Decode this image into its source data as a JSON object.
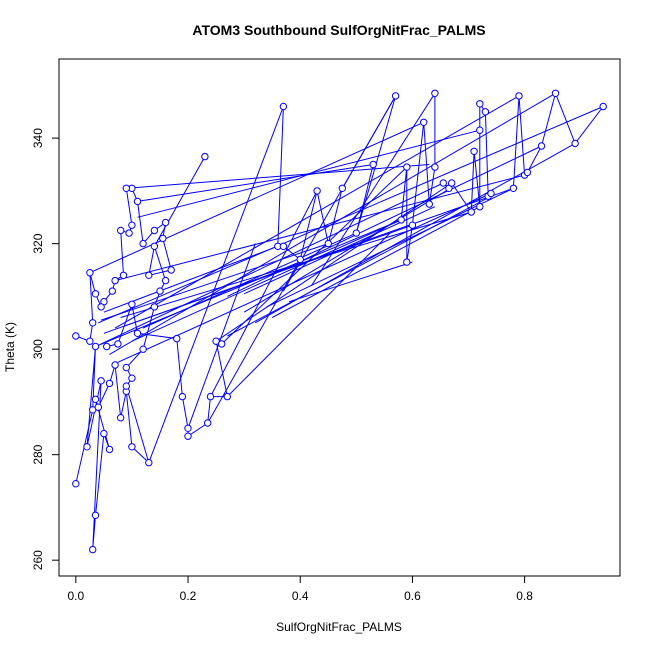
{
  "chart_data": {
    "type": "scatter",
    "title": "ATOM3 Southbound SulfOrgNitFrac_PALMS",
    "xlabel": "SulfOrgNitFrac_PALMS",
    "ylabel": "Theta (K)",
    "xlim": [
      -0.03,
      0.97
    ],
    "ylim": [
      257,
      355
    ],
    "xticks": [
      "0.0",
      "0.2",
      "0.4",
      "0.6",
      "0.8"
    ],
    "xtick_values": [
      0,
      0.2,
      0.4,
      0.6,
      0.8
    ],
    "yticks": [
      "260",
      "280",
      "300",
      "320",
      "340"
    ],
    "ytick_values": [
      260,
      280,
      300,
      320,
      340
    ],
    "grid": false,
    "series": [
      {
        "color": "#0000ff",
        "points": [
          [
            0.0,
            274.5
          ],
          [
            0.03,
            288.5
          ],
          [
            0.035,
            300.5
          ],
          [
            0.02,
            281.5
          ],
          [
            0.045,
            294.0
          ],
          [
            0.03,
            262.0
          ],
          [
            0.035,
            268.5
          ],
          [
            0.05,
            284.0
          ],
          [
            0.06,
            281.0
          ],
          [
            0.035,
            290.5
          ],
          [
            0.04,
            289.0
          ],
          [
            0.06,
            293.5
          ],
          [
            0.07,
            297.0
          ],
          [
            0.08,
            287.0
          ],
          [
            0.09,
            292.0
          ],
          [
            0.1,
            281.5
          ],
          [
            0.13,
            278.5
          ],
          [
            0.09,
            293.0
          ],
          [
            0.1,
            294.5
          ],
          [
            0.09,
            296.5
          ],
          [
            0.12,
            300.0
          ],
          [
            0.14,
            308.0
          ],
          [
            0.15,
            311.0
          ],
          [
            0.16,
            313.0
          ],
          [
            0.14,
            319.5
          ],
          [
            0.13,
            314.0
          ],
          [
            0.17,
            315.0
          ],
          [
            0.155,
            321.0
          ],
          [
            0.16,
            324.0
          ],
          [
            0.14,
            322.5
          ],
          [
            0.12,
            320.0
          ],
          [
            0.11,
            328.0
          ],
          [
            0.1,
            330.5
          ],
          [
            0.09,
            330.5
          ],
          [
            0.1,
            323.5
          ],
          [
            0.095,
            322.0
          ],
          [
            0.08,
            322.5
          ],
          [
            0.085,
            314.0
          ],
          [
            0.07,
            313.0
          ],
          [
            0.065,
            311.0
          ],
          [
            0.05,
            309.0
          ],
          [
            0.045,
            308.0
          ],
          [
            0.035,
            310.5
          ],
          [
            0.025,
            314.5
          ],
          [
            0.03,
            305.0
          ],
          [
            0.025,
            301.5
          ],
          [
            0.0,
            302.5
          ],
          [
            0.055,
            300.5
          ],
          [
            0.075,
            301.0
          ],
          [
            0.1,
            308.5
          ],
          [
            0.11,
            303.0
          ],
          [
            0.18,
            302.0
          ],
          [
            0.19,
            291.0
          ],
          [
            0.2,
            285.0
          ],
          [
            0.2,
            283.5
          ],
          [
            0.235,
            286.0
          ],
          [
            0.24,
            291.0
          ],
          [
            0.27,
            291.0
          ],
          [
            0.25,
            301.5
          ],
          [
            0.26,
            301.0
          ],
          [
            0.23,
            336.5
          ],
          [
            0.37,
            346.0
          ],
          [
            0.36,
            319.5
          ],
          [
            0.37,
            319.5
          ],
          [
            0.4,
            317.0
          ],
          [
            0.43,
            330.0
          ],
          [
            0.45,
            320.0
          ],
          [
            0.475,
            330.5
          ],
          [
            0.5,
            322.0
          ],
          [
            0.53,
            335.0
          ],
          [
            0.57,
            348.0
          ],
          [
            0.58,
            324.5
          ],
          [
            0.59,
            334.5
          ],
          [
            0.59,
            316.5
          ],
          [
            0.6,
            323.5
          ],
          [
            0.62,
            343.0
          ],
          [
            0.63,
            327.5
          ],
          [
            0.64,
            334.5
          ],
          [
            0.64,
            348.5
          ],
          [
            0.655,
            331.5
          ],
          [
            0.665,
            330.5
          ],
          [
            0.67,
            331.5
          ],
          [
            0.705,
            326.0
          ],
          [
            0.71,
            337.5
          ],
          [
            0.72,
            327.0
          ],
          [
            0.72,
            341.5
          ],
          [
            0.72,
            346.5
          ],
          [
            0.73,
            345.0
          ],
          [
            0.735,
            329.0
          ],
          [
            0.74,
            329.5
          ],
          [
            0.78,
            330.5
          ],
          [
            0.79,
            348.0
          ],
          [
            0.8,
            333.0
          ],
          [
            0.805,
            333.5
          ],
          [
            0.83,
            338.5
          ],
          [
            0.855,
            348.5
          ],
          [
            0.89,
            339.0
          ],
          [
            0.94,
            346.0
          ]
        ],
        "paths": [
          [
            [
              0.0,
              274.5
            ],
            [
              0.03,
              288.5
            ],
            [
              0.035,
              300.5
            ],
            [
              0.02,
              281.5
            ],
            [
              0.045,
              294.0
            ],
            [
              0.03,
              262.0
            ],
            [
              0.035,
              268.5
            ],
            [
              0.05,
              284.0
            ],
            [
              0.06,
              281.0
            ],
            [
              0.035,
              290.5
            ],
            [
              0.04,
              289.0
            ],
            [
              0.06,
              293.5
            ],
            [
              0.07,
              297.0
            ],
            [
              0.08,
              287.0
            ],
            [
              0.09,
              292.0
            ],
            [
              0.1,
              281.5
            ],
            [
              0.13,
              278.5
            ],
            [
              0.09,
              293.0
            ],
            [
              0.1,
              294.5
            ],
            [
              0.09,
              296.5
            ],
            [
              0.12,
              300.0
            ],
            [
              0.14,
              308.0
            ],
            [
              0.15,
              311.0
            ],
            [
              0.16,
              313.0
            ],
            [
              0.14,
              319.5
            ],
            [
              0.13,
              314.0
            ],
            [
              0.17,
              315.0
            ],
            [
              0.155,
              321.0
            ],
            [
              0.16,
              324.0
            ],
            [
              0.14,
              322.5
            ],
            [
              0.12,
              320.0
            ],
            [
              0.11,
              328.0
            ],
            [
              0.1,
              330.5
            ],
            [
              0.09,
              330.5
            ],
            [
              0.1,
              323.5
            ],
            [
              0.095,
              322.0
            ],
            [
              0.08,
              322.5
            ],
            [
              0.085,
              314.0
            ],
            [
              0.07,
              313.0
            ],
            [
              0.065,
              311.0
            ],
            [
              0.05,
              309.0
            ],
            [
              0.045,
              308.0
            ],
            [
              0.035,
              310.5
            ],
            [
              0.025,
              314.5
            ],
            [
              0.03,
              305.0
            ],
            [
              0.025,
              301.5
            ],
            [
              0.0,
              302.5
            ]
          ],
          [
            [
              0.055,
              300.5
            ],
            [
              0.075,
              301.0
            ],
            [
              0.1,
              308.5
            ],
            [
              0.11,
              303.0
            ],
            [
              0.18,
              302.0
            ],
            [
              0.19,
              291.0
            ],
            [
              0.2,
              285.0
            ],
            [
              0.2,
              283.5
            ],
            [
              0.235,
              286.0
            ],
            [
              0.24,
              291.0
            ],
            [
              0.27,
              291.0
            ],
            [
              0.25,
              301.5
            ],
            [
              0.26,
              301.0
            ]
          ],
          [
            [
              0.14,
              319.5
            ],
            [
              0.23,
              336.5
            ]
          ],
          [
            [
              0.13,
              278.5
            ],
            [
              0.37,
              346.0
            ],
            [
              0.36,
              319.5
            ],
            [
              0.37,
              319.5
            ],
            [
              0.4,
              317.0
            ],
            [
              0.43,
              330.0
            ],
            [
              0.45,
              320.0
            ],
            [
              0.475,
              330.5
            ],
            [
              0.57,
              348.0
            ],
            [
              0.5,
              322.0
            ],
            [
              0.53,
              335.0
            ]
          ],
          [
            [
              0.035,
              300.5
            ],
            [
              0.58,
              324.5
            ],
            [
              0.59,
              334.5
            ],
            [
              0.59,
              316.5
            ],
            [
              0.6,
              323.5
            ],
            [
              0.62,
              343.0
            ],
            [
              0.63,
              327.5
            ],
            [
              0.64,
              334.5
            ],
            [
              0.64,
              348.5
            ]
          ],
          [
            [
              0.045,
              301.0
            ],
            [
              0.655,
              331.5
            ],
            [
              0.665,
              330.5
            ],
            [
              0.67,
              331.5
            ],
            [
              0.705,
              326.0
            ],
            [
              0.71,
              337.5
            ],
            [
              0.72,
              327.0
            ],
            [
              0.72,
              341.5
            ],
            [
              0.72,
              346.5
            ],
            [
              0.73,
              345.0
            ],
            [
              0.735,
              329.0
            ],
            [
              0.74,
              329.5
            ]
          ],
          [
            [
              0.05,
              303.0
            ],
            [
              0.78,
              330.5
            ],
            [
              0.79,
              348.0
            ],
            [
              0.8,
              333.0
            ],
            [
              0.805,
              333.5
            ],
            [
              0.83,
              338.5
            ],
            [
              0.855,
              348.5
            ],
            [
              0.89,
              339.0
            ],
            [
              0.94,
              346.0
            ]
          ],
          [
            [
              0.025,
              314.5
            ],
            [
              0.62,
              343.0
            ]
          ],
          [
            [
              0.09,
              330.5
            ],
            [
              0.63,
              335.0
            ]
          ],
          [
            [
              0.11,
              325.0
            ],
            [
              0.72,
              341.5
            ]
          ],
          [
            [
              0.11,
              328.0
            ],
            [
              0.53,
              335.0
            ]
          ],
          [
            [
              0.07,
              313.0
            ],
            [
              0.8,
              333.0
            ]
          ],
          [
            [
              0.04,
              305.0
            ],
            [
              0.94,
              346.0
            ]
          ],
          [
            [
              0.06,
              299.0
            ],
            [
              0.855,
              348.5
            ]
          ],
          [
            [
              0.07,
              304.0
            ],
            [
              0.79,
              348.0
            ]
          ],
          [
            [
              0.08,
              306.0
            ],
            [
              0.705,
              326.0
            ]
          ],
          [
            [
              0.075,
              297.5
            ],
            [
              0.74,
              329.5
            ]
          ],
          [
            [
              0.09,
              304.5
            ],
            [
              0.6,
              323.5
            ]
          ],
          [
            [
              0.1,
              301.5
            ],
            [
              0.58,
              324.5
            ]
          ],
          [
            [
              0.12,
              304.0
            ],
            [
              0.5,
              322.0
            ]
          ],
          [
            [
              0.045,
              305.5
            ],
            [
              0.45,
              320.0
            ]
          ],
          [
            [
              0.05,
              307.0
            ],
            [
              0.36,
              319.5
            ]
          ],
          [
            [
              0.26,
              301.0
            ],
            [
              0.59,
              334.5
            ]
          ],
          [
            [
              0.25,
              301.5
            ],
            [
              0.67,
              331.5
            ]
          ],
          [
            [
              0.27,
              310.0
            ],
            [
              0.83,
              338.5
            ]
          ],
          [
            [
              0.27,
              302.5
            ],
            [
              0.74,
              329.0
            ]
          ],
          [
            [
              0.2,
              285.0
            ],
            [
              0.32,
              320.0
            ]
          ],
          [
            [
              0.235,
              286.0
            ],
            [
              0.4,
              317.0
            ]
          ],
          [
            [
              0.24,
              291.0
            ],
            [
              0.43,
              330.0
            ]
          ],
          [
            [
              0.27,
              291.0
            ],
            [
              0.56,
              322.0
            ]
          ],
          [
            [
              0.3,
              310.5
            ],
            [
              0.64,
              327.0
            ]
          ],
          [
            [
              0.35,
              306.0
            ],
            [
              0.72,
              327.0
            ]
          ],
          [
            [
              0.3,
              307.0
            ],
            [
              0.66,
              330.0
            ]
          ],
          [
            [
              0.32,
              305.0
            ],
            [
              0.89,
              339.0
            ]
          ],
          [
            [
              0.34,
              308.0
            ],
            [
              0.78,
              330.5
            ]
          ],
          [
            [
              0.37,
              311.0
            ],
            [
              0.57,
              348.0
            ]
          ],
          [
            [
              0.38,
              309.0
            ],
            [
              0.6,
              316.5
            ]
          ],
          [
            [
              0.42,
              312.0
            ],
            [
              0.64,
              348.5
            ]
          ]
        ]
      }
    ]
  }
}
